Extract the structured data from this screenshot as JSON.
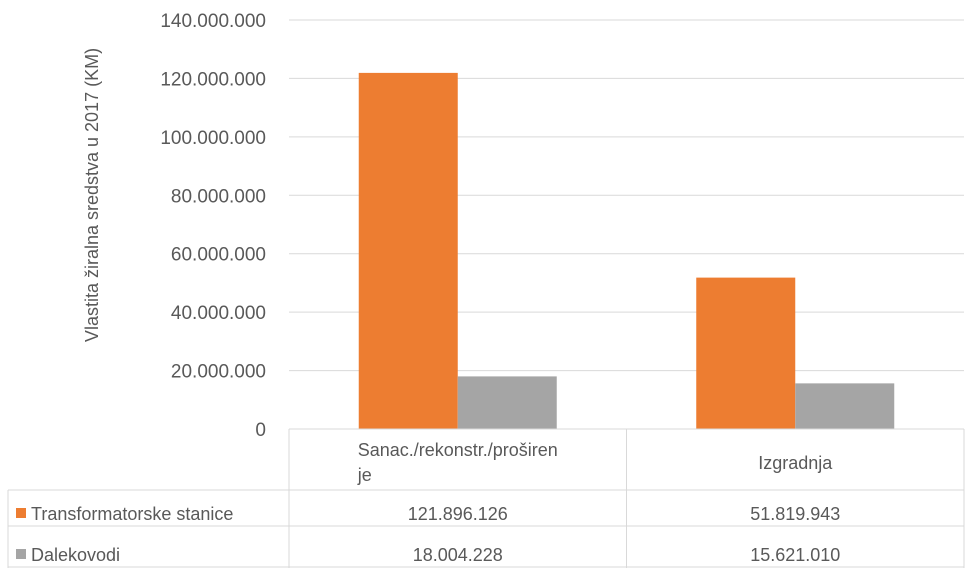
{
  "chart_data": {
    "type": "bar",
    "ylabel": "Vlastita žiralna sredstva u 2017 (KM)",
    "xlabel": "",
    "ylim": [
      0,
      140000000
    ],
    "yticks": [
      {
        "value": 0,
        "label": "0"
      },
      {
        "value": 20000000,
        "label": "20.000.000"
      },
      {
        "value": 40000000,
        "label": "40.000.000"
      },
      {
        "value": 60000000,
        "label": "60.000.000"
      },
      {
        "value": 80000000,
        "label": "80.000.000"
      },
      {
        "value": 100000000,
        "label": "100.000.000"
      },
      {
        "value": 120000000,
        "label": "120.000.000"
      },
      {
        "value": 140000000,
        "label": "140.000.000"
      }
    ],
    "categories": [
      {
        "line1": "Sanac./rekonstr./proširen",
        "line2": "je"
      },
      {
        "line1": "Izgradnja",
        "line2": ""
      }
    ],
    "series": [
      {
        "name": "Transformatorske stanice",
        "color": "#ED7D31",
        "values": [
          121896126,
          51819943
        ],
        "value_labels": [
          "121.896.126",
          "51.819.943"
        ]
      },
      {
        "name": "Dalekovodi",
        "color": "#A5A5A5",
        "values": [
          18004228,
          15621010
        ],
        "value_labels": [
          "18.004.228",
          "15.621.010"
        ]
      }
    ],
    "grid": true,
    "legend": "data-table"
  }
}
